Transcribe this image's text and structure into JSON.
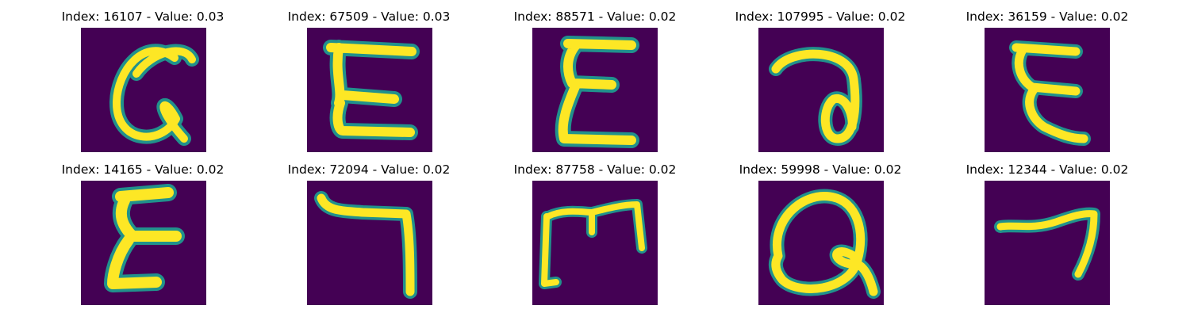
{
  "palette": {
    "background": "#440154",
    "halo": "#21918c",
    "mid": "#5ec962",
    "core": "#fde725"
  },
  "cells": [
    {
      "title": "Index: 16107 - Value: 0.03",
      "glyph": "handwritten-a-like"
    },
    {
      "title": "Index: 67509 - Value: 0.03",
      "glyph": "handwritten-sigma-like"
    },
    {
      "title": "Index: 88571 - Value: 0.02",
      "glyph": "handwritten-sigma-like"
    },
    {
      "title": "Index: 107995 - Value: 0.02",
      "glyph": "handwritten-loop"
    },
    {
      "title": "Index: 36159 - Value: 0.02",
      "glyph": "handwritten-sigma-like"
    },
    {
      "title": "Index: 14165 - Value: 0.02",
      "glyph": "handwritten-sigma-like"
    },
    {
      "title": "Index: 72094 - Value: 0.02",
      "glyph": "handwritten-hook"
    },
    {
      "title": "Index: 87758 - Value: 0.02",
      "glyph": "handwritten-m-frame"
    },
    {
      "title": "Index: 59998 - Value: 0.02",
      "glyph": "handwritten-a-like"
    },
    {
      "title": "Index: 12344 - Value: 0.02",
      "glyph": "handwritten-hook"
    }
  ]
}
